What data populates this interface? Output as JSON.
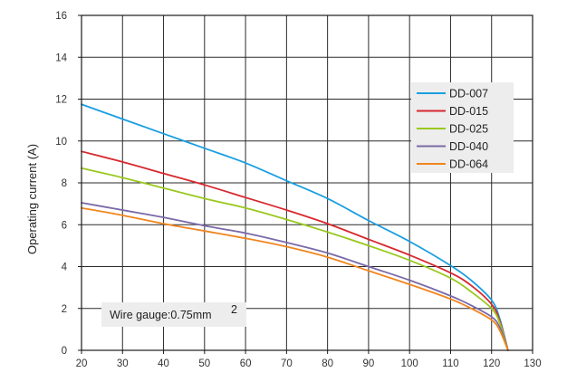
{
  "chart_data": {
    "type": "line",
    "title": "",
    "xlabel": "",
    "ylabel": "Operating current (A)",
    "xlim": [
      20,
      130
    ],
    "ylim": [
      0,
      16
    ],
    "xticks": [
      20,
      30,
      40,
      50,
      60,
      70,
      80,
      90,
      100,
      110,
      120,
      130
    ],
    "yticks": [
      0,
      2,
      4,
      6,
      8,
      10,
      12,
      14,
      16
    ],
    "grid": true,
    "legend_position": "right",
    "annotation": {
      "text": "Wire gauge:0.75mm",
      "superscript": "2"
    },
    "series": [
      {
        "name": "DD-007",
        "color": "#1a9ee0",
        "x": [
          20,
          30,
          40,
          50,
          60,
          70,
          80,
          90,
          100,
          110,
          115,
          120,
          122,
          124
        ],
        "y": [
          11.75,
          11.05,
          10.35,
          9.65,
          8.95,
          8.1,
          7.25,
          6.2,
          5.2,
          4.05,
          3.35,
          2.4,
          1.5,
          0
        ]
      },
      {
        "name": "DD-015",
        "color": "#d7282e",
        "x": [
          20,
          30,
          40,
          50,
          60,
          70,
          80,
          90,
          100,
          110,
          115,
          120,
          122,
          124
        ],
        "y": [
          9.5,
          9.0,
          8.45,
          7.9,
          7.3,
          6.7,
          6.05,
          5.3,
          4.55,
          3.7,
          3.1,
          2.2,
          1.4,
          0
        ]
      },
      {
        "name": "DD-025",
        "color": "#9ac81e",
        "x": [
          20,
          30,
          40,
          50,
          60,
          70,
          80,
          90,
          100,
          110,
          115,
          120,
          122,
          124
        ],
        "y": [
          8.7,
          8.25,
          7.75,
          7.25,
          6.8,
          6.25,
          5.65,
          5.0,
          4.3,
          3.45,
          2.8,
          2.0,
          1.3,
          0
        ]
      },
      {
        "name": "DD-040",
        "color": "#7a6aa8",
        "x": [
          20,
          30,
          40,
          50,
          60,
          70,
          80,
          90,
          100,
          110,
          115,
          120,
          122,
          124
        ],
        "y": [
          7.05,
          6.7,
          6.35,
          5.95,
          5.6,
          5.15,
          4.65,
          4.0,
          3.35,
          2.6,
          2.15,
          1.6,
          1.1,
          0
        ]
      },
      {
        "name": "DD-064",
        "color": "#f0851e",
        "x": [
          20,
          30,
          40,
          50,
          60,
          70,
          80,
          90,
          100,
          110,
          115,
          120,
          122,
          124
        ],
        "y": [
          6.8,
          6.45,
          6.05,
          5.7,
          5.35,
          4.95,
          4.45,
          3.8,
          3.15,
          2.45,
          2.0,
          1.45,
          0.95,
          0
        ]
      }
    ]
  }
}
